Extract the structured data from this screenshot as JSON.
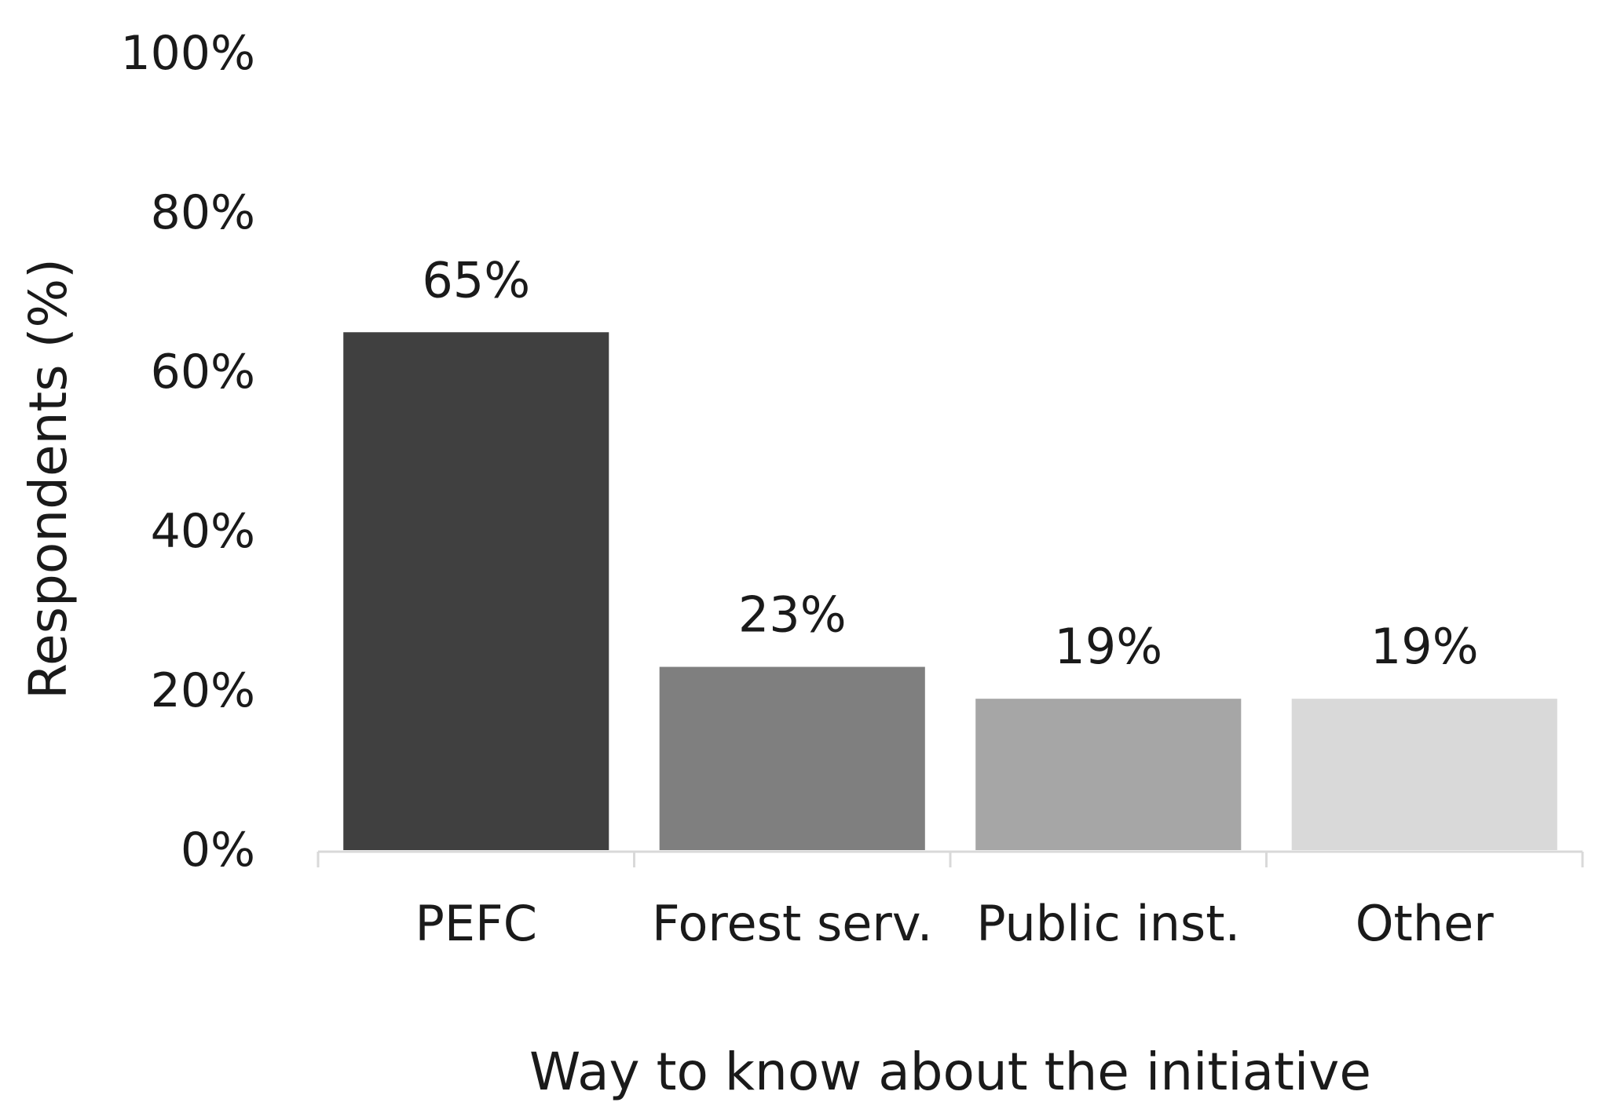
{
  "chart_data": {
    "type": "bar",
    "title": "",
    "xlabel": "Way to know about the initiative",
    "ylabel": "Respondents (%)",
    "ylim": [
      0,
      100
    ],
    "yticks": [
      0,
      20,
      40,
      60,
      80,
      100
    ],
    "ytick_labels": [
      "0%",
      "20%",
      "40%",
      "60%",
      "80%",
      "100%"
    ],
    "grid": false,
    "legend": "none",
    "categories": [
      "PEFC",
      "Forest serv.",
      "Public inst.",
      "Other"
    ],
    "values": [
      65,
      23,
      19,
      19
    ],
    "data_labels": [
      "65%",
      "23%",
      "19%",
      "19%"
    ],
    "colors": [
      "#404040",
      "#7f7f7f",
      "#a6a6a6",
      "#d9d9d9"
    ],
    "axis_color": "#d9d9d9"
  }
}
